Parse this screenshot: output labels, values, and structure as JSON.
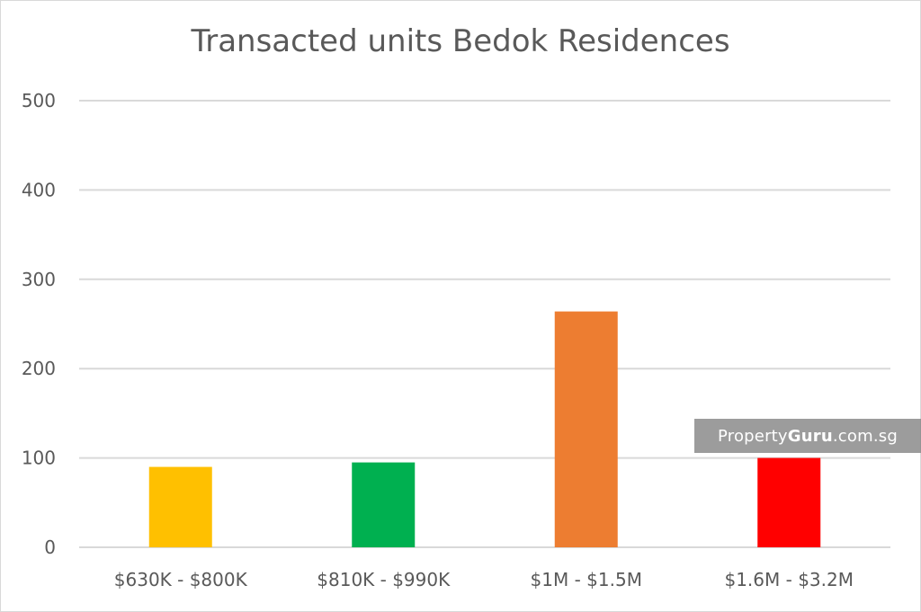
{
  "chart_data": {
    "type": "bar",
    "title": "Transacted units Bedok Residences",
    "categories": [
      "$630K - $800K",
      "$810K - $990K",
      "$1M - $1.5M",
      "$1.6M - $3.2M"
    ],
    "values": [
      90,
      95,
      264,
      100
    ],
    "colors": [
      "#FFC000",
      "#00B050",
      "#ED7D31",
      "#FF0000"
    ],
    "xlabel": "",
    "ylabel": "",
    "ylim": [
      0,
      500
    ],
    "yticks": [
      "0",
      "100",
      "200",
      "300",
      "400",
      "500"
    ],
    "grid": true,
    "legend": "none"
  },
  "watermark": {
    "part1": "Property",
    "part2": "Guru",
    "part3": ".com.sg"
  }
}
